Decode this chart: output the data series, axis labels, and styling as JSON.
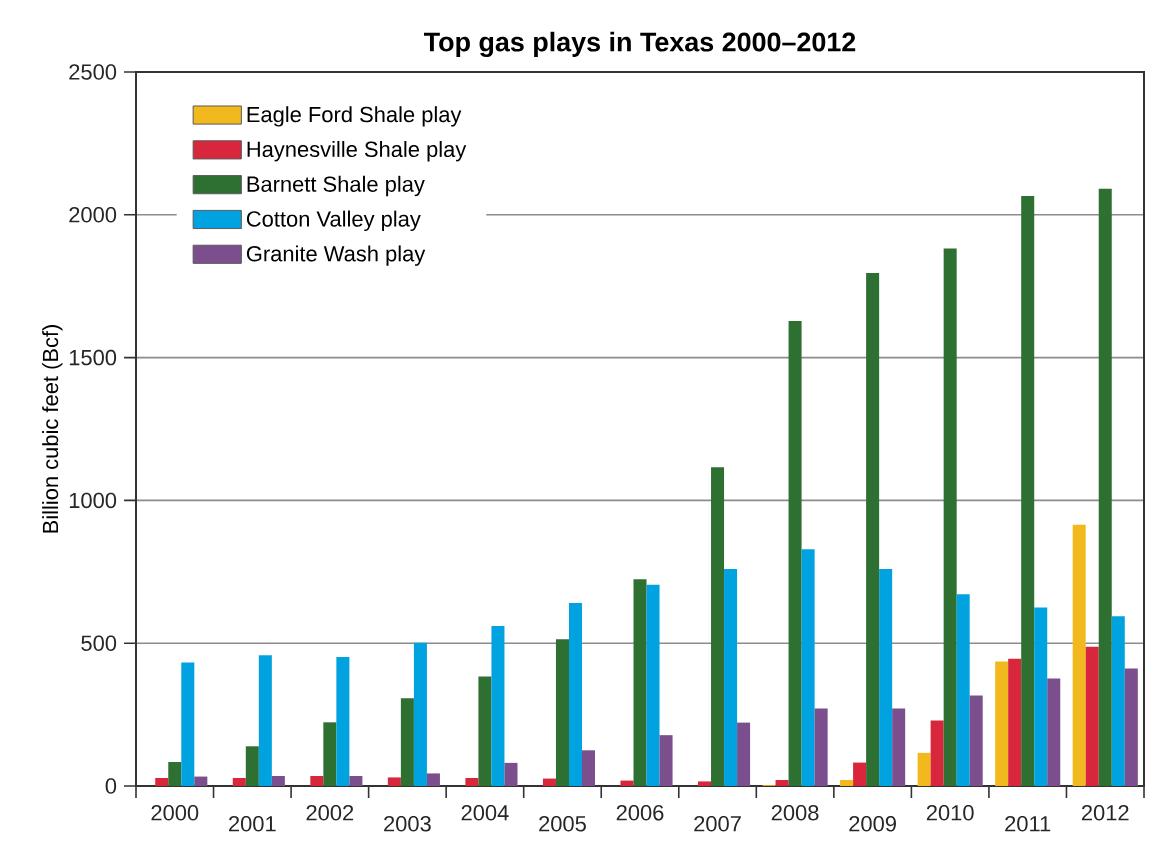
{
  "chart_data": {
    "type": "bar",
    "title": "Top gas plays in Texas 2000–2012",
    "ylabel": "Billion cubic feet (Bcf)",
    "categories": [
      "2000",
      "2001",
      "2002",
      "2003",
      "2004",
      "2005",
      "2006",
      "2007",
      "2008",
      "2009",
      "2010",
      "2011",
      "2012"
    ],
    "series": [
      {
        "name": "Eagle Ford Shale play",
        "color": "#f2b91e",
        "values": [
          0,
          0,
          0,
          0,
          0,
          0,
          0,
          0,
          3,
          21,
          116,
          436,
          915
        ]
      },
      {
        "name": "Haynesville Shale play",
        "color": "#d8263d",
        "values": [
          28,
          28,
          35,
          30,
          28,
          26,
          19,
          16,
          21,
          82,
          229,
          446,
          488
        ]
      },
      {
        "name": "Barnett Shale play",
        "color": "#2e6f32",
        "values": [
          84,
          139,
          223,
          307,
          383,
          514,
          724,
          1116,
          1628,
          1796,
          1882,
          2066,
          2091
        ]
      },
      {
        "name": "Cotton Valley play",
        "color": "#00a3e0",
        "values": [
          432,
          458,
          452,
          502,
          560,
          641,
          705,
          760,
          829,
          760,
          671,
          625,
          594
        ]
      },
      {
        "name": "Granite Wash play",
        "color": "#7b4f8e",
        "values": [
          33,
          35,
          35,
          44,
          81,
          125,
          178,
          222,
          271,
          271,
          317,
          376,
          411
        ]
      }
    ],
    "ylim": [
      0,
      2500
    ],
    "yticks": [
      0,
      500,
      1000,
      1500,
      2000,
      2500
    ],
    "grid": "y",
    "legend": "top left"
  }
}
